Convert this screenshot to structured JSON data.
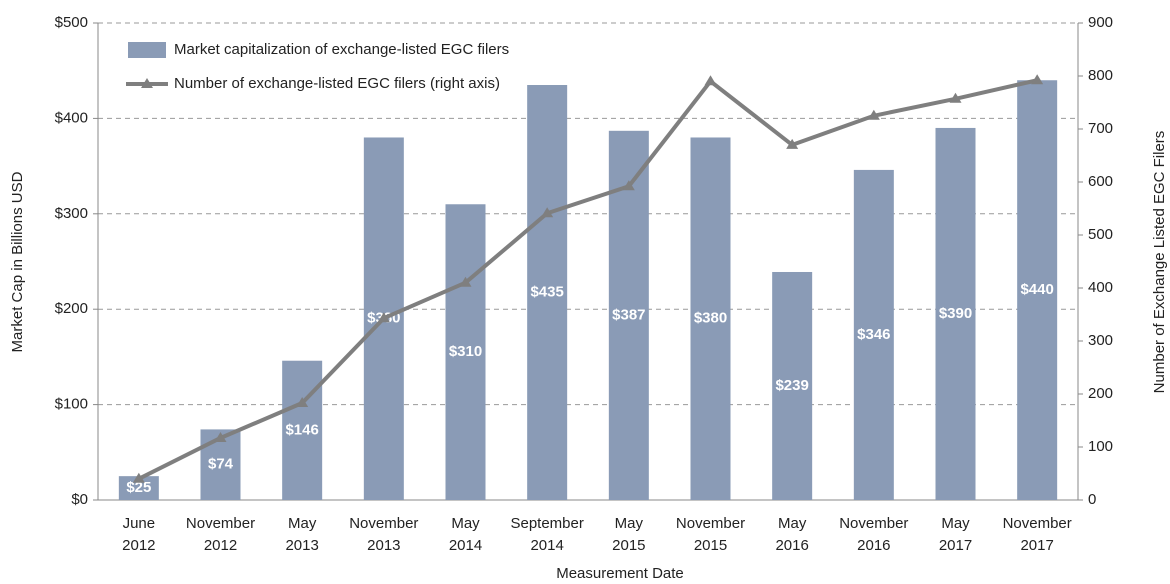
{
  "chart_data": {
    "type": "bar_line",
    "categories": [
      "June 2012",
      "November 2012",
      "May 2013",
      "November 2013",
      "May 2014",
      "September 2014",
      "May 2015",
      "November 2015",
      "May 2016",
      "November 2016",
      "May 2017",
      "November 2017"
    ],
    "series": [
      {
        "name": "Market capitalization of exchange-listed EGC filers",
        "type": "bar",
        "color": "#8a9bb6",
        "values": [
          25,
          74,
          146,
          380,
          310,
          435,
          387,
          380,
          239,
          346,
          390,
          440
        ],
        "value_labels": [
          "$25",
          "$74",
          "$146",
          "$380",
          "$310",
          "$435",
          "$387",
          "$380",
          "$239",
          "$346",
          "$390",
          "$440"
        ]
      },
      {
        "name": "Number of exchange-listed EGC filers (right axis)",
        "type": "line",
        "color": "#7f7f7f",
        "axis": "y2",
        "values": [
          40,
          117,
          183,
          343,
          410,
          541,
          592,
          790,
          670,
          725,
          757,
          792
        ]
      }
    ],
    "xlabel": "Measurement Date",
    "ylabel": "Market Cap in Billions USD",
    "y2label": "Number of Exchange Listed EGC Filers",
    "ylim": [
      0,
      500
    ],
    "yticks": [
      {
        "value": 0,
        "label": "$0"
      },
      {
        "value": 100,
        "label": "$100"
      },
      {
        "value": 200,
        "label": "$200"
      },
      {
        "value": 300,
        "label": "$300"
      },
      {
        "value": 400,
        "label": "$400"
      },
      {
        "value": 500,
        "label": "$500"
      }
    ],
    "y2lim": [
      0,
      900
    ],
    "y2ticks": [
      0,
      100,
      200,
      300,
      400,
      500,
      600,
      700,
      800,
      900
    ],
    "grid": true,
    "legend": "upper left"
  }
}
